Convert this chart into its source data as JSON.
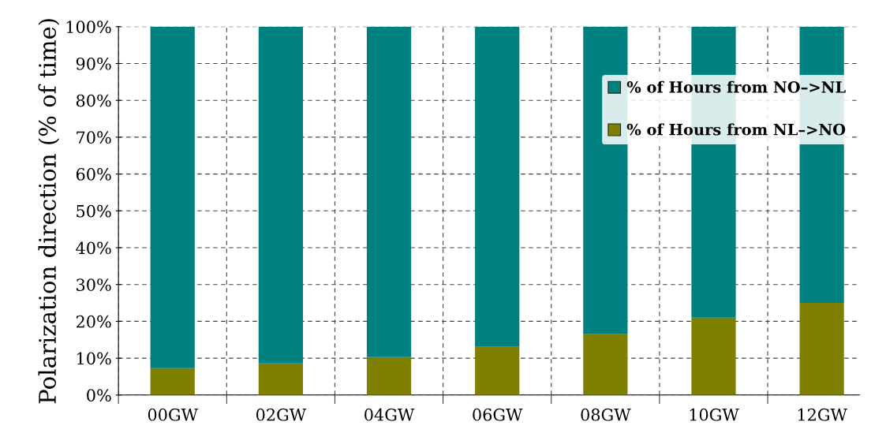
{
  "chart_data": {
    "type": "bar",
    "stacked": true,
    "ylabel": "Polarization direction (% of time)",
    "categories": [
      "00GW",
      "02GW",
      "04GW",
      "06GW",
      "08GW",
      "10GW",
      "12GW"
    ],
    "series": [
      {
        "name": "% of Hours from NL–>NO",
        "color": "#7f7f00",
        "values": [
          7.3,
          8.6,
          10.3,
          13.1,
          16.5,
          21.0,
          25.0
        ]
      },
      {
        "name": "% of Hours from NO–>NL",
        "color": "#00807f",
        "values": [
          92.7,
          91.4,
          89.7,
          86.9,
          83.5,
          79.0,
          75.0
        ]
      }
    ],
    "ylim": [
      0,
      100
    ],
    "yticks": [
      {
        "value": 0,
        "label": "0%"
      },
      {
        "value": 10,
        "label": "10%"
      },
      {
        "value": 20,
        "label": "20%"
      },
      {
        "value": 30,
        "label": "30%"
      },
      {
        "value": 40,
        "label": "40%"
      },
      {
        "value": 50,
        "label": "50%"
      },
      {
        "value": 60,
        "label": "60%"
      },
      {
        "value": 70,
        "label": "70%"
      },
      {
        "value": 80,
        "label": "80%"
      },
      {
        "value": 90,
        "label": "90%"
      },
      {
        "value": 100,
        "label": "100%"
      }
    ],
    "grid": true,
    "legend": "top right"
  }
}
